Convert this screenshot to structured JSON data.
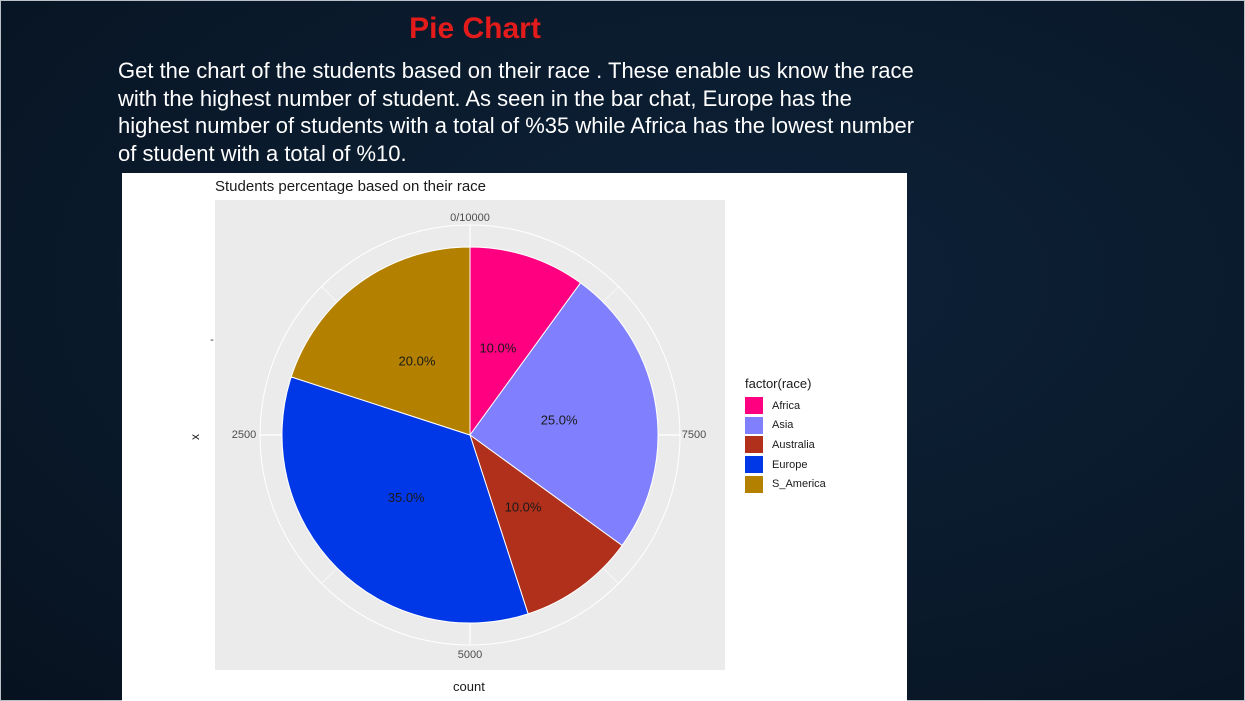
{
  "slide": {
    "title": "Pie Chart",
    "body": "Get the chart of the students based on their race . These enable us know the race with the highest number of student. As seen in the bar chat, Europe has the highest number of students with a total of %35 while Africa has the lowest number of student with a total of %10."
  },
  "chart_data": {
    "type": "pie",
    "title": "Students percentage based on their race",
    "xlabel": "count",
    "ylabel": "x",
    "legend_title": "factor(race)",
    "legend_position": "right",
    "grid": true,
    "total": 10000,
    "theta_ticks": [
      "0/10000",
      "2500",
      "5000",
      "7500"
    ],
    "y_tick": "-",
    "slices": [
      {
        "name": "Africa",
        "value": 10.0,
        "label": "10.0%",
        "color": "#ff0080"
      },
      {
        "name": "Asia",
        "value": 25.0,
        "label": "25.0%",
        "color": "#8080ff"
      },
      {
        "name": "Australia",
        "value": 10.0,
        "label": "10.0%",
        "color": "#b0301c"
      },
      {
        "name": "Europe",
        "value": 35.0,
        "label": "35.0%",
        "color": "#0037e6"
      },
      {
        "name": "S_America",
        "value": 20.0,
        "label": "20.0%",
        "color": "#b38000"
      }
    ]
  }
}
